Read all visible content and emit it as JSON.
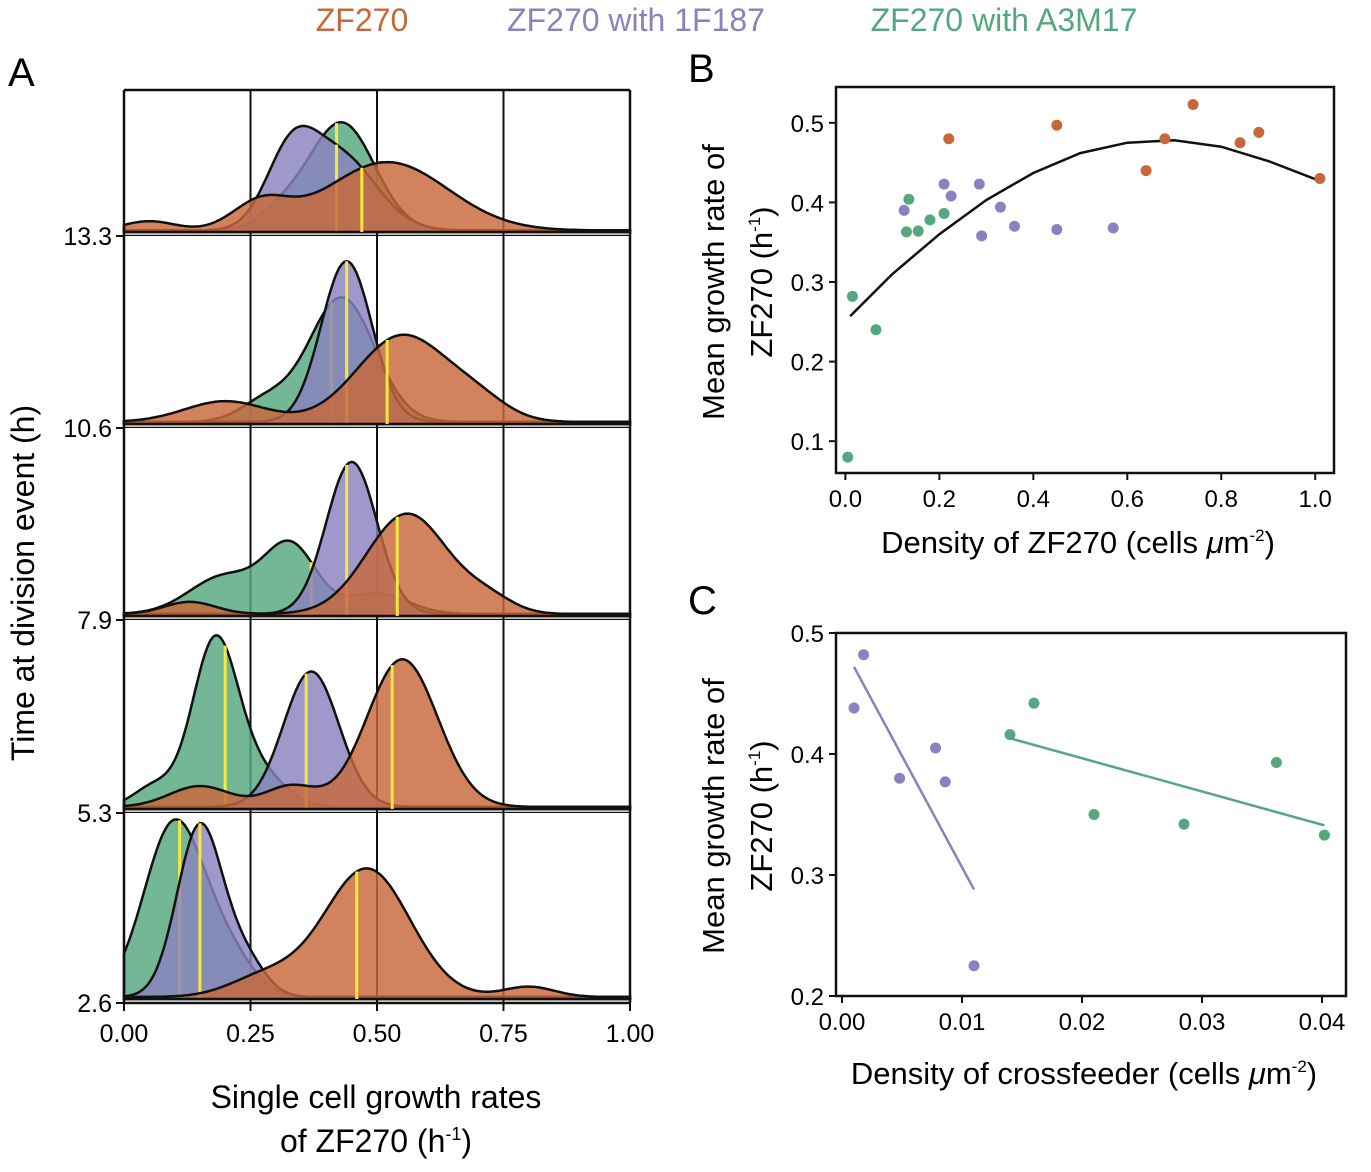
{
  "colors": {
    "zf270": "#C8683A",
    "zf270_1f187": "#8A82C0",
    "zf270_a3m17": "#55A77F",
    "mean_line": "#F6E83C",
    "curve": "#111111"
  },
  "legend": [
    {
      "label": "ZF270",
      "color_key": "zf270"
    },
    {
      "label": "ZF270 with 1F187",
      "color_key": "zf270_1f187"
    },
    {
      "label": "ZF270 with A3M17",
      "color_key": "zf270_a3m17"
    }
  ],
  "chart_data": [
    {
      "id": "A",
      "panel_label": "A",
      "type": "area",
      "xlabel_line1": "Single cell growth rates",
      "xlabel_line2": "of ZF270 (h",
      "xlabel_sup": "-1",
      "xlabel_end": ")",
      "ylabel": "Time at division event  (h)",
      "xlim": [
        0,
        1
      ],
      "xticks": [
        "0.00",
        "0.25",
        "0.50",
        "0.75",
        "1.00"
      ],
      "xtick_values": [
        0,
        0.25,
        0.5,
        0.75,
        1.0
      ],
      "grid_x": [
        0.25,
        0.5,
        0.75
      ],
      "rows": [
        {
          "time_label": "13.3",
          "series": [
            {
              "name": "ZF270",
              "mean": 0.47,
              "peaks": [
                [
                  0.27,
                  0.055,
                  0.2
                ],
                [
                  0.52,
                  0.12,
                  0.52
                ],
                [
                  0.05,
                  0.05,
                  0.07
                ]
              ]
            },
            {
              "name": "ZF270 with 1F187",
              "mean": 0.42,
              "peaks": [
                [
                  0.33,
                  0.05,
                  0.55
                ],
                [
                  0.43,
                  0.07,
                  0.55
                ]
              ]
            },
            {
              "name": "ZF270 with A3M17",
              "mean": 0.42,
              "peaks": [
                [
                  0.43,
                  0.065,
                  0.82
                ],
                [
                  0.31,
                  0.045,
                  0.12
                ]
              ]
            }
          ]
        },
        {
          "time_label": "10.6",
          "series": [
            {
              "name": "ZF270",
              "mean": 0.52,
              "peaks": [
                [
                  0.2,
                  0.08,
                  0.12
                ],
                [
                  0.55,
                  0.09,
                  0.5
                ],
                [
                  0.7,
                  0.06,
                  0.1
                ]
              ]
            },
            {
              "name": "ZF270 with 1F187",
              "mean": 0.44,
              "peaks": [
                [
                  0.44,
                  0.05,
                  0.93
                ]
              ]
            },
            {
              "name": "ZF270 with A3M17",
              "mean": 0.41,
              "peaks": [
                [
                  0.43,
                  0.065,
                  0.72
                ],
                [
                  0.28,
                  0.05,
                  0.12
                ]
              ]
            }
          ]
        },
        {
          "time_label": "7.9",
          "series": [
            {
              "name": "ZF270",
              "mean": 0.54,
              "peaks": [
                [
                  0.13,
                  0.05,
                  0.07
                ],
                [
                  0.56,
                  0.08,
                  0.58
                ],
                [
                  0.72,
                  0.05,
                  0.08
                ]
              ]
            },
            {
              "name": "ZF270 with 1F187",
              "mean": 0.44,
              "peaks": [
                [
                  0.45,
                  0.05,
                  0.88
                ]
              ]
            },
            {
              "name": "ZF270 with A3M17",
              "mean": 0.37,
              "peaks": [
                [
                  0.2,
                  0.07,
                  0.22
                ],
                [
                  0.33,
                  0.05,
                  0.38
                ],
                [
                  0.5,
                  0.06,
                  0.12
                ]
              ]
            }
          ]
        },
        {
          "time_label": "5.3",
          "series": [
            {
              "name": "ZF270",
              "mean": 0.53,
              "peaks": [
                [
                  0.15,
                  0.06,
                  0.12
                ],
                [
                  0.55,
                  0.07,
                  0.85
                ],
                [
                  0.33,
                  0.05,
                  0.12
                ]
              ]
            },
            {
              "name": "ZF270 with 1F187",
              "mean": 0.36,
              "peaks": [
                [
                  0.37,
                  0.055,
                  0.78
                ]
              ]
            },
            {
              "name": "ZF270 with A3M17",
              "mean": 0.2,
              "peaks": [
                [
                  0.18,
                  0.045,
                  0.95
                ],
                [
                  0.27,
                  0.05,
                  0.18
                ],
                [
                  0.06,
                  0.04,
                  0.12
                ]
              ]
            }
          ]
        },
        {
          "time_label": "2.6",
          "series": [
            {
              "name": "ZF270",
              "mean": 0.46,
              "peaks": [
                [
                  0.48,
                  0.085,
                  0.75
                ],
                [
                  0.28,
                  0.07,
                  0.12
                ],
                [
                  0.8,
                  0.05,
                  0.06
                ]
              ]
            },
            {
              "name": "ZF270 with 1F187",
              "mean": 0.15,
              "peaks": [
                [
                  0.15,
                  0.045,
                  1.0
                ],
                [
                  0.24,
                  0.04,
                  0.2
                ]
              ]
            },
            {
              "name": "ZF270 with A3M17",
              "mean": 0.11,
              "peaks": [
                [
                  0.1,
                  0.06,
                  1.02
                ],
                [
                  0.21,
                  0.05,
                  0.2
                ]
              ]
            }
          ]
        }
      ]
    },
    {
      "id": "B",
      "panel_label": "B",
      "type": "scatter",
      "xlabel_main": "Density of ZF270 (cells ",
      "xlabel_mu": "μ",
      "xlabel_unit": "m",
      "xlabel_sup": "-2",
      "xlabel_end": ")",
      "ylabel_line1": "Mean growth rate of",
      "ylabel_line2": "ZF270 (h",
      "ylabel_sup": "-1",
      "ylabel_end": ")",
      "xlim": [
        -0.02,
        1.04
      ],
      "ylim": [
        0.06,
        0.545
      ],
      "xticks": [
        "0.0",
        "0.2",
        "0.4",
        "0.6",
        "0.8",
        "1.0"
      ],
      "xtick_values": [
        0,
        0.2,
        0.4,
        0.6,
        0.8,
        1.0
      ],
      "yticks": [
        "0.1",
        "0.2",
        "0.3",
        "0.4",
        "0.5"
      ],
      "ytick_values": [
        0.1,
        0.2,
        0.3,
        0.4,
        0.5
      ],
      "series": [
        {
          "name": "ZF270",
          "color_key": "zf270",
          "x": [
            0.22,
            0.45,
            0.64,
            0.68,
            0.74,
            0.84,
            0.88,
            1.01
          ],
          "y": [
            0.48,
            0.497,
            0.44,
            0.48,
            0.523,
            0.475,
            0.488,
            0.43
          ]
        },
        {
          "name": "ZF270 with 1F187",
          "color_key": "zf270_1f187",
          "x": [
            0.125,
            0.21,
            0.225,
            0.285,
            0.29,
            0.33,
            0.36,
            0.45,
            0.57
          ],
          "y": [
            0.39,
            0.423,
            0.408,
            0.423,
            0.358,
            0.394,
            0.37,
            0.366,
            0.368
          ]
        },
        {
          "name": "ZF270 with A3M17",
          "color_key": "zf270_a3m17",
          "x": [
            0.005,
            0.015,
            0.065,
            0.13,
            0.135,
            0.155,
            0.18,
            0.21
          ],
          "y": [
            0.08,
            0.282,
            0.24,
            0.363,
            0.404,
            0.364,
            0.378,
            0.386
          ]
        }
      ],
      "fit": {
        "x": [
          0.01,
          0.1,
          0.2,
          0.3,
          0.4,
          0.5,
          0.6,
          0.7,
          0.8,
          0.9,
          1.01
        ],
        "y": [
          0.257,
          0.31,
          0.36,
          0.403,
          0.437,
          0.462,
          0.475,
          0.478,
          0.47,
          0.452,
          0.427
        ]
      }
    },
    {
      "id": "C",
      "panel_label": "C",
      "type": "scatter",
      "xlabel_main": "Density of crossfeeder (cells ",
      "xlabel_mu": "μ",
      "xlabel_unit": "m",
      "xlabel_sup": "-2",
      "xlabel_end": ")",
      "ylabel_line1": "Mean growth rate of",
      "ylabel_line2": "ZF270 (h",
      "ylabel_sup": "-1",
      "ylabel_end": ")",
      "xlim": [
        -0.0005,
        0.042
      ],
      "ylim": [
        0.2,
        0.5
      ],
      "xticks": [
        "0.00",
        "0.01",
        "0.02",
        "0.03",
        "0.04"
      ],
      "xtick_values": [
        0,
        0.01,
        0.02,
        0.03,
        0.04
      ],
      "yticks": [
        "0.2",
        "0.3",
        "0.4",
        "0.5"
      ],
      "ytick_values": [
        0.2,
        0.3,
        0.4,
        0.5
      ],
      "series": [
        {
          "name": "ZF270 with 1F187",
          "color_key": "zf270_1f187",
          "x": [
            0.001,
            0.0018,
            0.0048,
            0.0078,
            0.0086,
            0.011
          ],
          "y": [
            0.438,
            0.482,
            0.38,
            0.405,
            0.377,
            0.225
          ],
          "fit": {
            "x": [
              0.001,
              0.011
            ],
            "y": [
              0.472,
              0.288
            ]
          }
        },
        {
          "name": "ZF270 with A3M17",
          "color_key": "zf270_a3m17",
          "x": [
            0.014,
            0.016,
            0.021,
            0.0285,
            0.0362,
            0.0402
          ],
          "y": [
            0.416,
            0.442,
            0.35,
            0.342,
            0.393,
            0.333
          ],
          "fit": {
            "x": [
              0.014,
              0.0402
            ],
            "y": [
              0.413,
              0.341
            ]
          }
        }
      ]
    }
  ]
}
